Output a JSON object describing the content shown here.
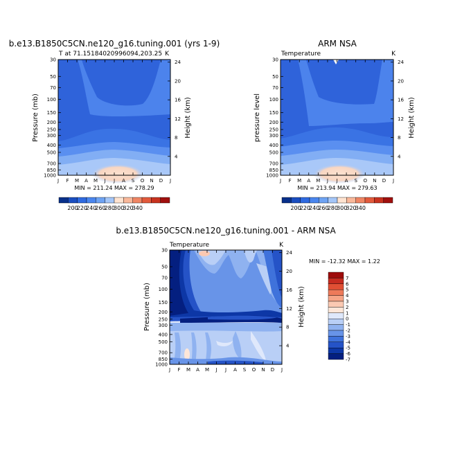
{
  "chart_data": [
    {
      "type": "heatmap",
      "title": "b.e13.B1850C5CN.ne120_g16.tuning.001 (yrs 1-9)",
      "subtitle_left": "T at 71.15184020996094,203.25",
      "subtitle_right": "K",
      "ylabel": "Pressure (mb)",
      "ylabel_right": "Height (km)",
      "x_ticks": [
        "J",
        "F",
        "M",
        "A",
        "M",
        "J",
        "J",
        "A",
        "S",
        "O",
        "N",
        "D",
        "J"
      ],
      "y_ticks": [
        "30",
        "50",
        "70",
        "100",
        "150",
        "200",
        "250",
        "300",
        "400",
        "500",
        "700",
        "850",
        "1000"
      ],
      "height_ticks": [
        "24",
        "20",
        "16",
        "12",
        "8",
        "4"
      ],
      "stats": "MIN = 211.24  MAX = 278.29",
      "color_levels": [
        "200",
        "220",
        "240",
        "260",
        "280",
        "300",
        "320",
        "340"
      ],
      "values": {
        "min": 211.24,
        "max": 278.29
      }
    },
    {
      "type": "heatmap",
      "title": "ARM NSA",
      "subtitle_left": "Temperature",
      "subtitle_right": "K",
      "ylabel": "pressure level",
      "ylabel_right": "Height (km)",
      "x_ticks": [
        "J",
        "F",
        "M",
        "A",
        "M",
        "J",
        "J",
        "A",
        "S",
        "O",
        "N",
        "D",
        "J"
      ],
      "y_ticks": [
        "30",
        "50",
        "70",
        "100",
        "150",
        "200",
        "250",
        "300",
        "400",
        "500",
        "700",
        "850",
        "1000"
      ],
      "height_ticks": [
        "24",
        "20",
        "16",
        "12",
        "8",
        "4"
      ],
      "stats": "MIN = 213.94  MAX = 279.63",
      "color_levels": [
        "200",
        "220",
        "240",
        "260",
        "280",
        "300",
        "320",
        "340"
      ],
      "values": {
        "min": 213.94,
        "max": 279.63
      }
    },
    {
      "type": "heatmap",
      "title": "b.e13.B1850C5CN.ne120_g16.tuning.001 - ARM NSA",
      "subtitle_left": "Temperature",
      "subtitle_right": "K",
      "ylabel": "Pressure (mb)",
      "ylabel_right": "Height (km)",
      "x_ticks": [
        "J",
        "F",
        "M",
        "A",
        "M",
        "J",
        "J",
        "A",
        "S",
        "O",
        "N",
        "D",
        "J"
      ],
      "y_ticks": [
        "30",
        "50",
        "70",
        "100",
        "150",
        "200",
        "250",
        "300",
        "400",
        "500",
        "700",
        "850",
        "1000"
      ],
      "height_ticks": [
        "24",
        "20",
        "16",
        "12",
        "8",
        "4"
      ],
      "stats": "MIN = -12.32  MAX =   1.22",
      "color_levels": [
        "7",
        "6",
        "5",
        "4",
        "3",
        "2",
        "1",
        "0",
        "-1",
        "-2",
        "-3",
        "-4",
        "-5",
        "-6",
        "-7"
      ],
      "values": {
        "min": -12.32,
        "max": 1.22
      }
    }
  ],
  "colors": {
    "temp_scale": [
      "#08308a",
      "#1a4ec0",
      "#2f6ae0",
      "#4a86ee",
      "#6ea3f3",
      "#a4c6f8",
      "#ffe3d0",
      "#f9b89a",
      "#ef8664",
      "#e25a3c",
      "#c8321f",
      "#a0100e"
    ],
    "diff_scale": [
      "#9e0b0b",
      "#c62b20",
      "#e04f34",
      "#ee7a5a",
      "#f6a587",
      "#fbc9b2",
      "#fde6d8",
      "#dfe8fb",
      "#b9cff6",
      "#8fb2f0",
      "#6894e8",
      "#3f72db",
      "#2553c7",
      "#0d37a6",
      "#041f80"
    ]
  }
}
